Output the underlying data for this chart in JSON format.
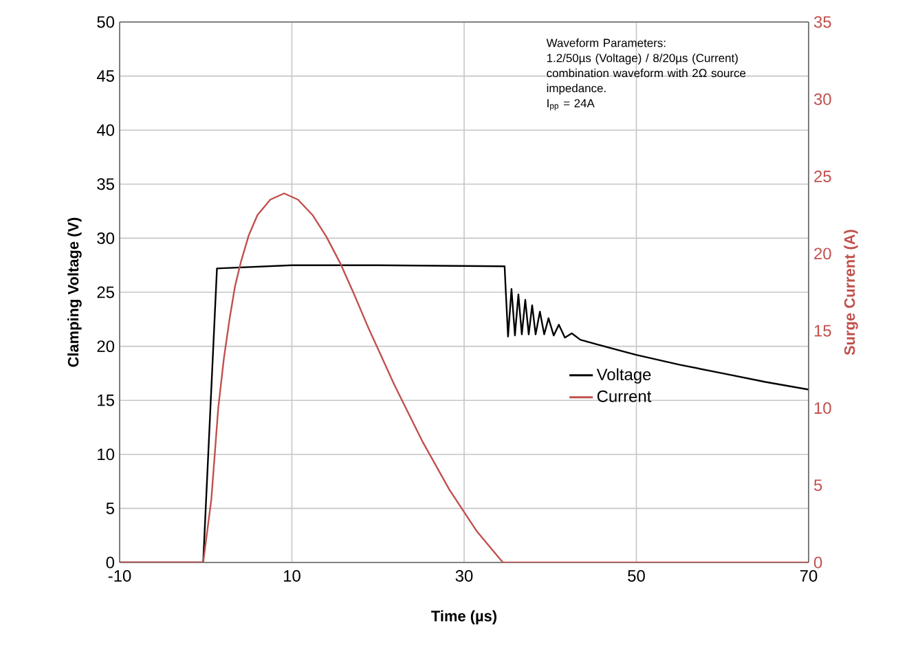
{
  "chart_data": {
    "type": "line",
    "xlabel": "Time (µs)",
    "ylabel": "Clamping Voltage (V)",
    "y2label": "Surge Current (A)",
    "xlim": [
      -10,
      70
    ],
    "xticks": [
      -10,
      10,
      30,
      50,
      70
    ],
    "ylim": [
      0,
      50
    ],
    "yticks": [
      0,
      5,
      10,
      15,
      20,
      25,
      30,
      35,
      40,
      45,
      50
    ],
    "y2lim": [
      0,
      35
    ],
    "y2ticks": [
      0,
      5,
      10,
      15,
      20,
      25,
      30,
      35
    ],
    "grid": true,
    "legend": "center right",
    "marker": "none",
    "line_style": "solid",
    "annotations": [
      "Waveform Parameters:",
      "1.2/50µs (Voltage) / 8/20µs (Current) combination waveform with 2Ω source impedance.",
      "I$_{pp}$ = 24A"
    ],
    "series": [
      {
        "name": "Voltage",
        "color": "#000000",
        "x": [
          -10,
          -0.3,
          1.3,
          10,
          20,
          34.5,
          34.7,
          34.8,
          35.1,
          35.5,
          35.9,
          36.3,
          36.7,
          37.1,
          37.5,
          37.9,
          38.3,
          38.8,
          39.3,
          39.8,
          40.4,
          41.0,
          41.7,
          42.5,
          43.5,
          45.3,
          50,
          55,
          60,
          65,
          70
        ],
        "values": [
          0,
          0,
          27.2,
          27.5,
          27.5,
          27.4,
          27.4,
          25.7,
          20.9,
          25.3,
          21.0,
          24.8,
          21.1,
          24.3,
          21.1,
          23.8,
          21.1,
          23.2,
          21.1,
          22.6,
          21.0,
          22.0,
          20.8,
          21.2,
          20.6,
          20.2,
          19.2,
          18.3,
          17.5,
          16.7,
          16.0
        ]
      },
      {
        "name": "Current",
        "color": "#c0504d",
        "axis": "y2",
        "x": [
          -10,
          -0.3,
          0.65,
          1.45,
          2.1,
          2.8,
          3.4,
          4.1,
          5.0,
          6.0,
          7.5,
          9.1,
          10.7,
          12.4,
          14.0,
          15.6,
          17.2,
          18.8,
          21.9,
          25.1,
          28.3,
          31.5,
          34.5,
          70
        ],
        "values": [
          0,
          0,
          4.1,
          10.0,
          13.2,
          15.9,
          17.9,
          19.5,
          21.2,
          22.5,
          23.5,
          23.9,
          23.5,
          22.5,
          21.1,
          19.4,
          17.4,
          15.3,
          11.5,
          7.9,
          4.7,
          2.0,
          0,
          0
        ]
      }
    ]
  }
}
